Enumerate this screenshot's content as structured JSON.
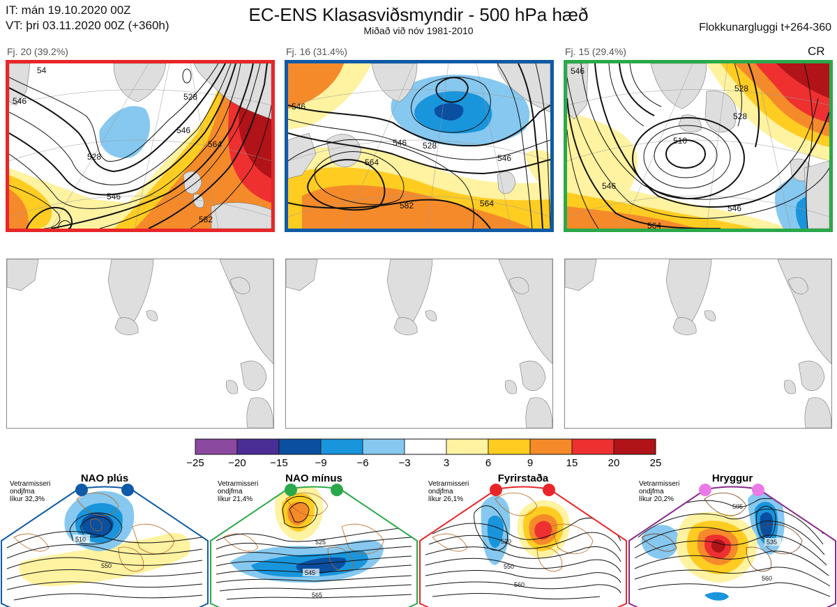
{
  "header": {
    "it_line": "IT: mán 19.10.2020 00Z",
    "vt_line": "VT: þri 03.11.2020 00Z  (+360h)",
    "title": "EC-ENS Klasasviðsmyndir - 500 hPa hæð",
    "subtitle": "Miðað við nóv 1981-2010",
    "window": "Flokkunargluggi t+264-360"
  },
  "clusters": [
    {
      "label": "Fj. 20 (39.2%)",
      "color": "#e8262a",
      "contour_labels": [
        "528",
        "546",
        "564",
        "582",
        "546",
        "528",
        "546",
        "54"
      ]
    },
    {
      "label": "Fj. 16 (31.4%)",
      "color": "#0f5aa6",
      "contour_labels": [
        "528",
        "546",
        "564",
        "582",
        "564",
        "546",
        "546"
      ]
    },
    {
      "label": "Fj. 15 (29.4%)",
      "color": "#2aa84a",
      "tag": "CR",
      "contour_labels": [
        "510",
        "528",
        "546",
        "564",
        "528",
        "546",
        "546"
      ]
    }
  ],
  "colorbar": {
    "ticks": [
      "−25",
      "−20",
      "−15",
      "−9",
      "−6",
      "−3",
      "3",
      "6",
      "9",
      "15",
      "20",
      "25"
    ],
    "colors": [
      "#8b4aa0",
      "#4a2d95",
      "#0a4fa0",
      "#1995dc",
      "#86c8ef",
      "#ffffff",
      "#fff2a0",
      "#ffcc22",
      "#f58a2a",
      "#ee3030",
      "#b01318"
    ]
  },
  "regimes": [
    {
      "name": "NAO plús",
      "info": [
        "Vetrarmisseri",
        "ondjfma",
        "líkur 32,3%"
      ],
      "color": "#0f5aa6",
      "dot": "#0f5aa6",
      "contour_labels": [
        "510",
        "550"
      ]
    },
    {
      "name": "NAO mínus",
      "info": [
        "Vetrarmisseri",
        "ondjfma",
        "líkur 21,4%"
      ],
      "color": "#2aa84a",
      "dot": "#2aa84a",
      "contour_labels": [
        "525",
        "545",
        "565"
      ]
    },
    {
      "name": "Fyrirstaða",
      "info": [
        "Vetrarmisseri",
        "ondjfma",
        "líkur 26,1%"
      ],
      "color": "#e8262a",
      "dot": "#e8262a",
      "contour_labels": [
        "520",
        "550",
        "560"
      ]
    },
    {
      "name": "Hryggur",
      "info": [
        "Vetrarmisseri",
        "ondjfma",
        "líkur 20,2%"
      ],
      "color": "#8a2a8a",
      "dot": "#ea7ae8",
      "contour_labels": [
        "505",
        "535",
        "560"
      ]
    }
  ]
}
